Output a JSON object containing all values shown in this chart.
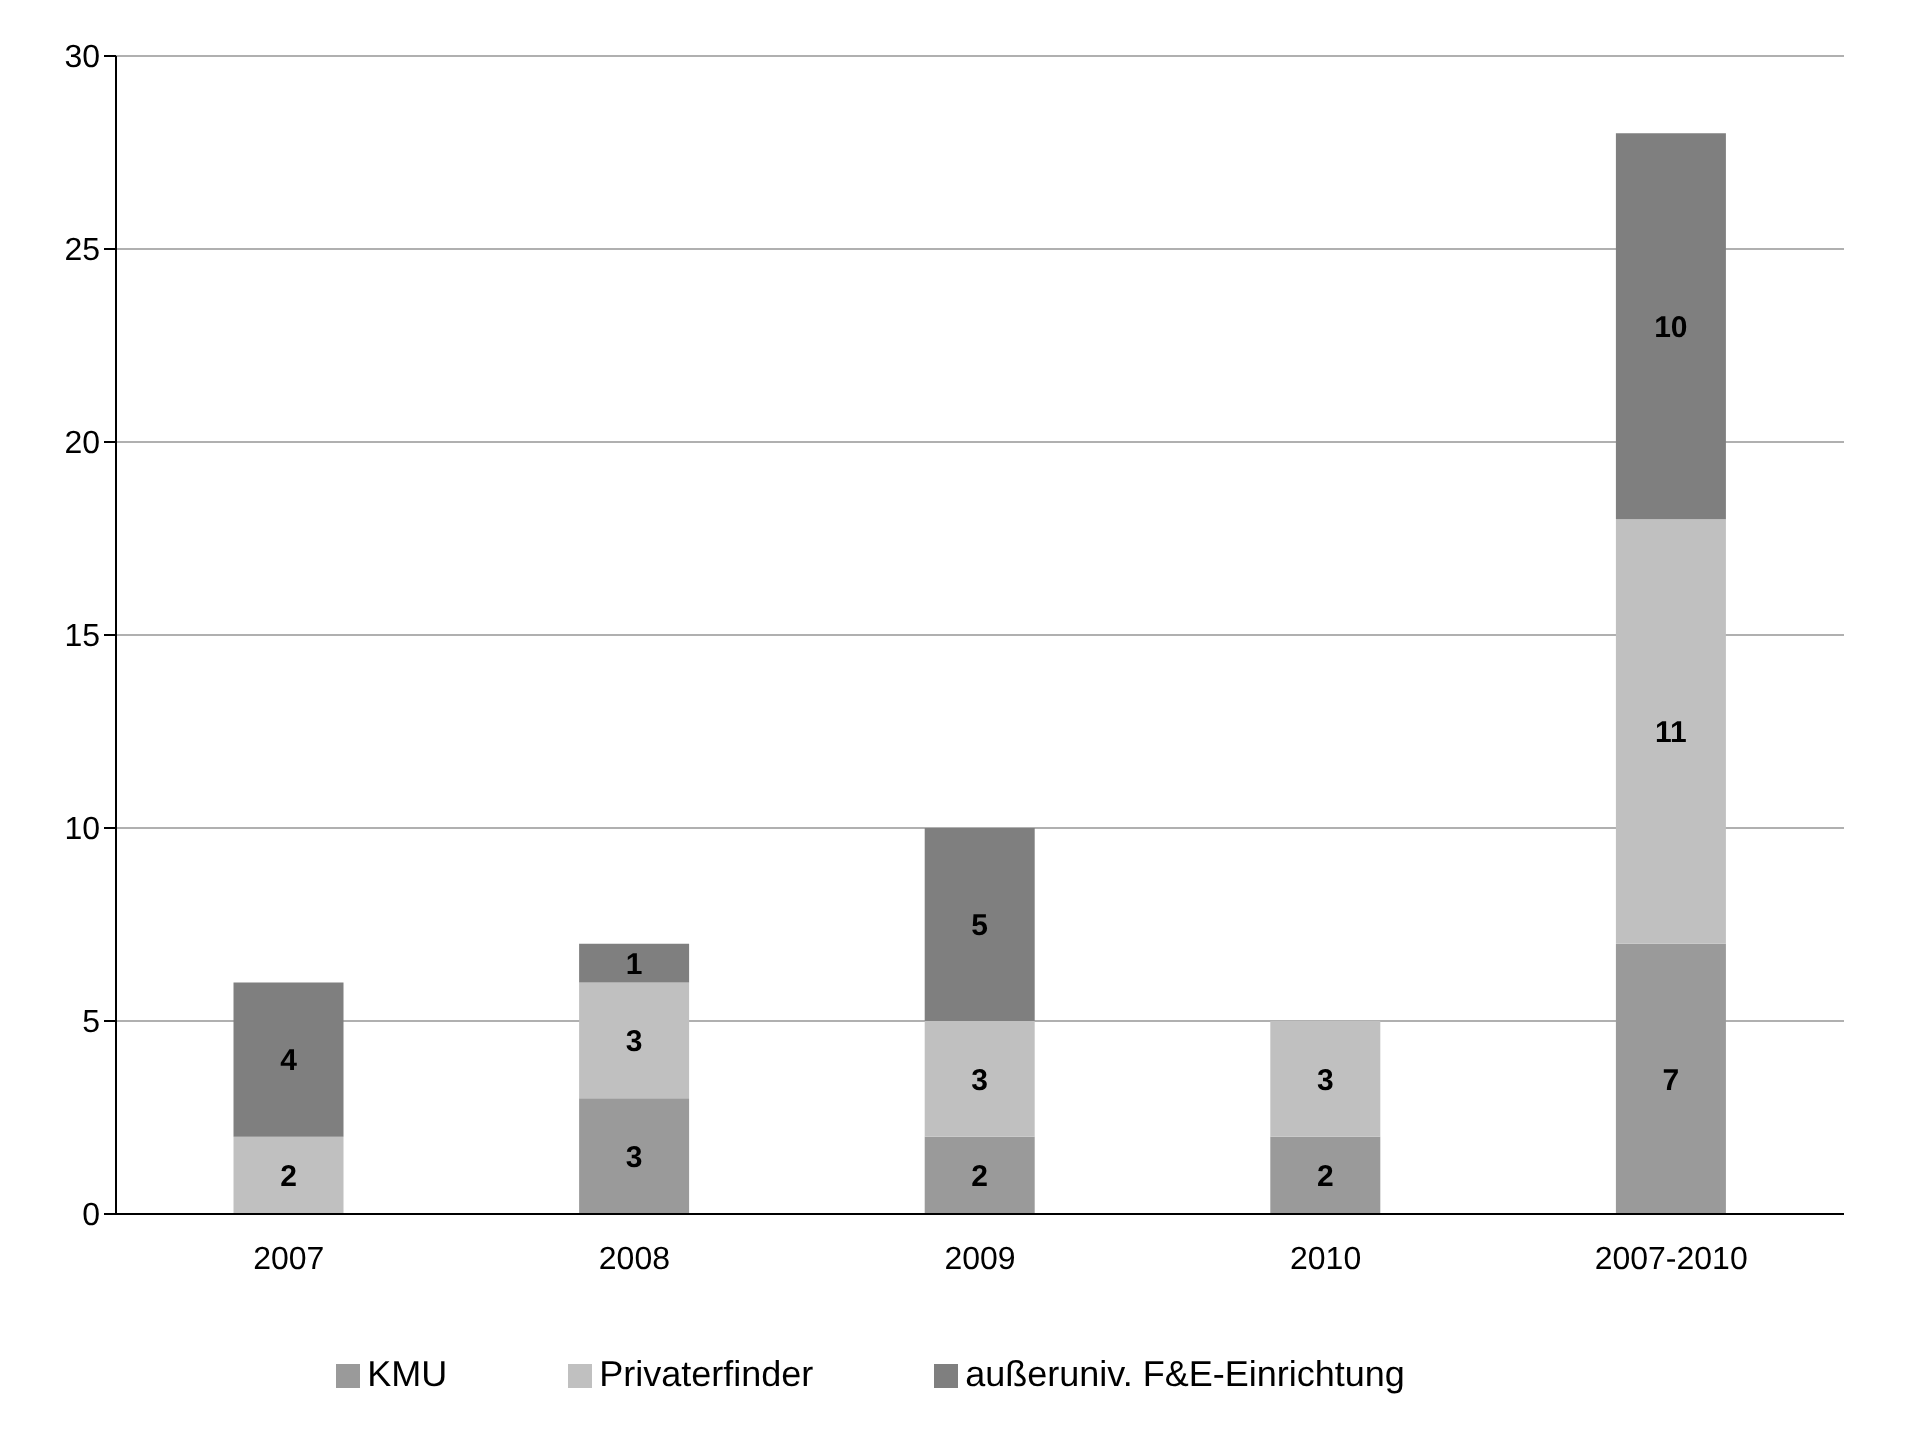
{
  "chart_data": {
    "type": "bar",
    "stacked": true,
    "categories": [
      "2007",
      "2008",
      "2009",
      "2010",
      "2007-2010"
    ],
    "series": [
      {
        "name": "KMU",
        "color": "#9a9a9a",
        "values": [
          null,
          3,
          2,
          2,
          7
        ]
      },
      {
        "name": "Privaterfinder",
        "color": "#c0c0c0",
        "values": [
          2,
          3,
          3,
          3,
          11
        ]
      },
      {
        "name": "außeruniv. F&E-Einrichtung",
        "color": "#7f7f7f",
        "values": [
          4,
          1,
          5,
          null,
          10
        ]
      }
    ],
    "ylim": [
      0,
      30
    ],
    "yticks": [
      0,
      5,
      10,
      15,
      20,
      25,
      30
    ],
    "grid": "y",
    "legend": "bottom",
    "data_labels": true
  }
}
